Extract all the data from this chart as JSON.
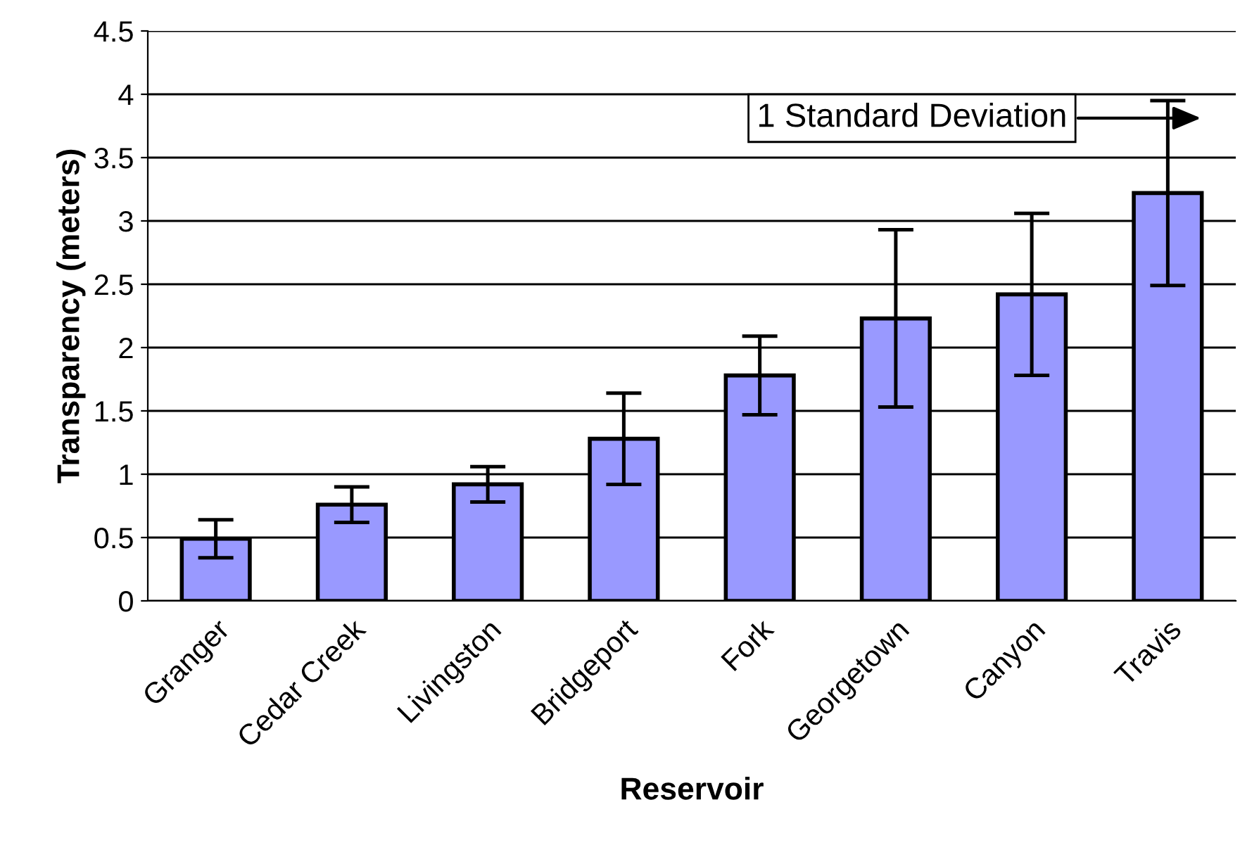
{
  "chart_data": {
    "type": "bar",
    "xlabel": "Reservoir",
    "ylabel": "Transparency (meters)",
    "categories": [
      "Granger",
      "Cedar Creek",
      "Livingston",
      "Bridgeport",
      "Fork",
      "Georgetown",
      "Canyon",
      "Travis"
    ],
    "values": [
      0.49,
      0.76,
      0.92,
      1.28,
      1.78,
      2.23,
      2.42,
      3.22
    ],
    "errors": [
      0.15,
      0.14,
      0.14,
      0.36,
      0.31,
      0.7,
      0.64,
      0.73
    ],
    "color": "#9999ff",
    "ylim": [
      0,
      4.5
    ],
    "yticks": [
      0,
      0.5,
      1,
      1.5,
      2,
      2.5,
      3,
      3.5,
      4,
      4.5
    ],
    "grid": "y",
    "annotations": [
      "1 Standard Deviation"
    ]
  }
}
